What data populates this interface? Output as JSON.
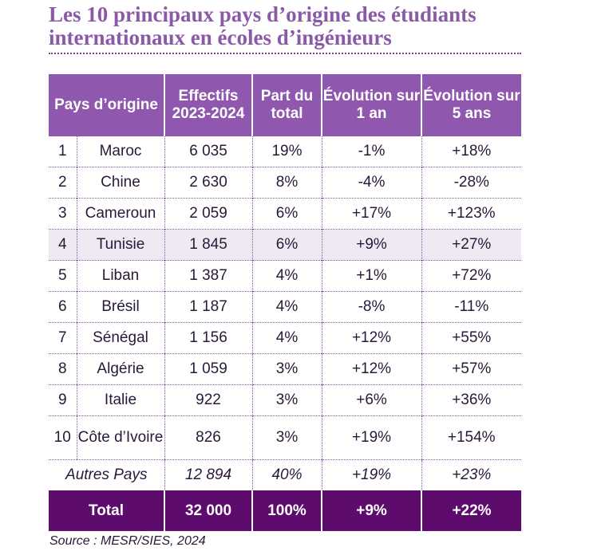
{
  "title": "Les 10 principaux pays d’origine des étudiants internationaux en écoles d’ingénieurs",
  "colors": {
    "title": "#8a5aa8",
    "header_bg": "#8f58ae",
    "total_bg": "#5e0b6e",
    "alt_row_bg": "#efe9f4",
    "dotted_rule": "#7c3f97"
  },
  "table": {
    "headers": {
      "country": "Pays d’origine",
      "enrollment": "Effectifs 2023-2024",
      "share": "Part du total",
      "change_1y": "Évolution sur 1 an",
      "change_5y": "Évolution sur 5 ans"
    },
    "rows": [
      {
        "rank": "1",
        "country": "Maroc",
        "enrollment": "6 035",
        "share": "19%",
        "change_1y": "-1%",
        "change_5y": "+18%"
      },
      {
        "rank": "2",
        "country": "Chine",
        "enrollment": "2 630",
        "share": "8%",
        "change_1y": "-4%",
        "change_5y": "-28%"
      },
      {
        "rank": "3",
        "country": "Cameroun",
        "enrollment": "2 059",
        "share": "6%",
        "change_1y": "+17%",
        "change_5y": "+123%"
      },
      {
        "rank": "4",
        "country": "Tunisie",
        "enrollment": "1 845",
        "share": "6%",
        "change_1y": "+9%",
        "change_5y": "+27%"
      },
      {
        "rank": "5",
        "country": "Liban",
        "enrollment": "1 387",
        "share": "4%",
        "change_1y": "+1%",
        "change_5y": "+72%"
      },
      {
        "rank": "6",
        "country": "Brésil",
        "enrollment": "1 187",
        "share": "4%",
        "change_1y": "-8%",
        "change_5y": "-11%"
      },
      {
        "rank": "7",
        "country": "Sénégal",
        "enrollment": "1 156",
        "share": "4%",
        "change_1y": "+12%",
        "change_5y": "+55%"
      },
      {
        "rank": "8",
        "country": "Algérie",
        "enrollment": "1 059",
        "share": "3%",
        "change_1y": "+12%",
        "change_5y": "+57%"
      },
      {
        "rank": "9",
        "country": "Italie",
        "enrollment": "922",
        "share": "3%",
        "change_1y": "+6%",
        "change_5y": "+36%"
      },
      {
        "rank": "10",
        "country": "Côte d’Ivoire",
        "enrollment": "826",
        "share": "3%",
        "change_1y": "+19%",
        "change_5y": "+154%"
      }
    ],
    "other": {
      "label": "Autres Pays",
      "enrollment": "12 894",
      "share": "40%",
      "change_1y": "+19%",
      "change_5y": "+23%"
    },
    "total": {
      "label": "Total",
      "enrollment": "32 000",
      "share": "100%",
      "change_1y": "+9%",
      "change_5y": "+22%"
    }
  },
  "source": "Source : MESR/SIES, 2024"
}
